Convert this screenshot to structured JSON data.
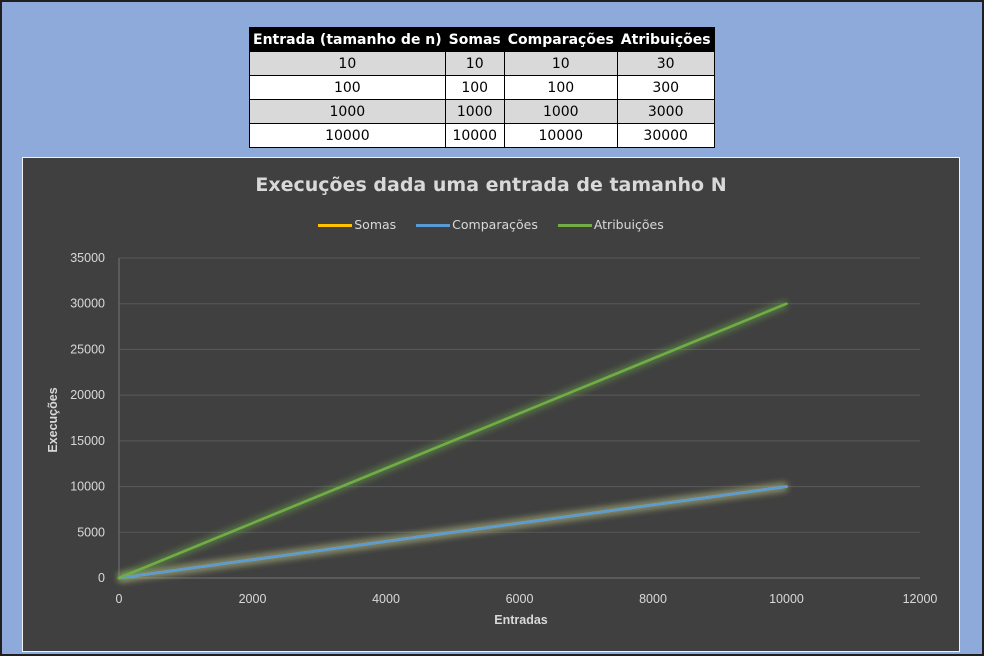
{
  "table": {
    "headers": [
      "Entrada (tamanho de n)",
      "Somas",
      "Comparações",
      "Atribuições"
    ],
    "rows": [
      [
        "10",
        "10",
        "10",
        "30"
      ],
      [
        "100",
        "100",
        "100",
        "300"
      ],
      [
        "1000",
        "1000",
        "1000",
        "3000"
      ],
      [
        "10000",
        "10000",
        "10000",
        "30000"
      ]
    ]
  },
  "chart_data": {
    "type": "line",
    "title": "Execuções dada uma entrada de tamanho N",
    "xlabel": "Entradas",
    "ylabel": "Execuções",
    "x": [
      0,
      10,
      100,
      1000,
      10000
    ],
    "xlim": [
      0,
      12000
    ],
    "ylim": [
      0,
      35000
    ],
    "xticks": [
      "0",
      "2000",
      "4000",
      "6000",
      "8000",
      "10000",
      "12000"
    ],
    "yticks": [
      "0",
      "5000",
      "10000",
      "15000",
      "20000",
      "25000",
      "30000",
      "35000"
    ],
    "legend_position": "top",
    "grid": true,
    "series": [
      {
        "name": "Somas",
        "color": "#ffc000",
        "values": [
          0,
          10,
          100,
          1000,
          10000
        ]
      },
      {
        "name": "Comparações",
        "color": "#5b9bd5",
        "values": [
          0,
          10,
          100,
          1000,
          10000
        ]
      },
      {
        "name": "Atribuições",
        "color": "#70ad47",
        "values": [
          0,
          30,
          300,
          3000,
          30000
        ]
      }
    ],
    "colors": {
      "background": "#404040",
      "gridline": "#595959",
      "text": "#d9d9d9"
    }
  }
}
